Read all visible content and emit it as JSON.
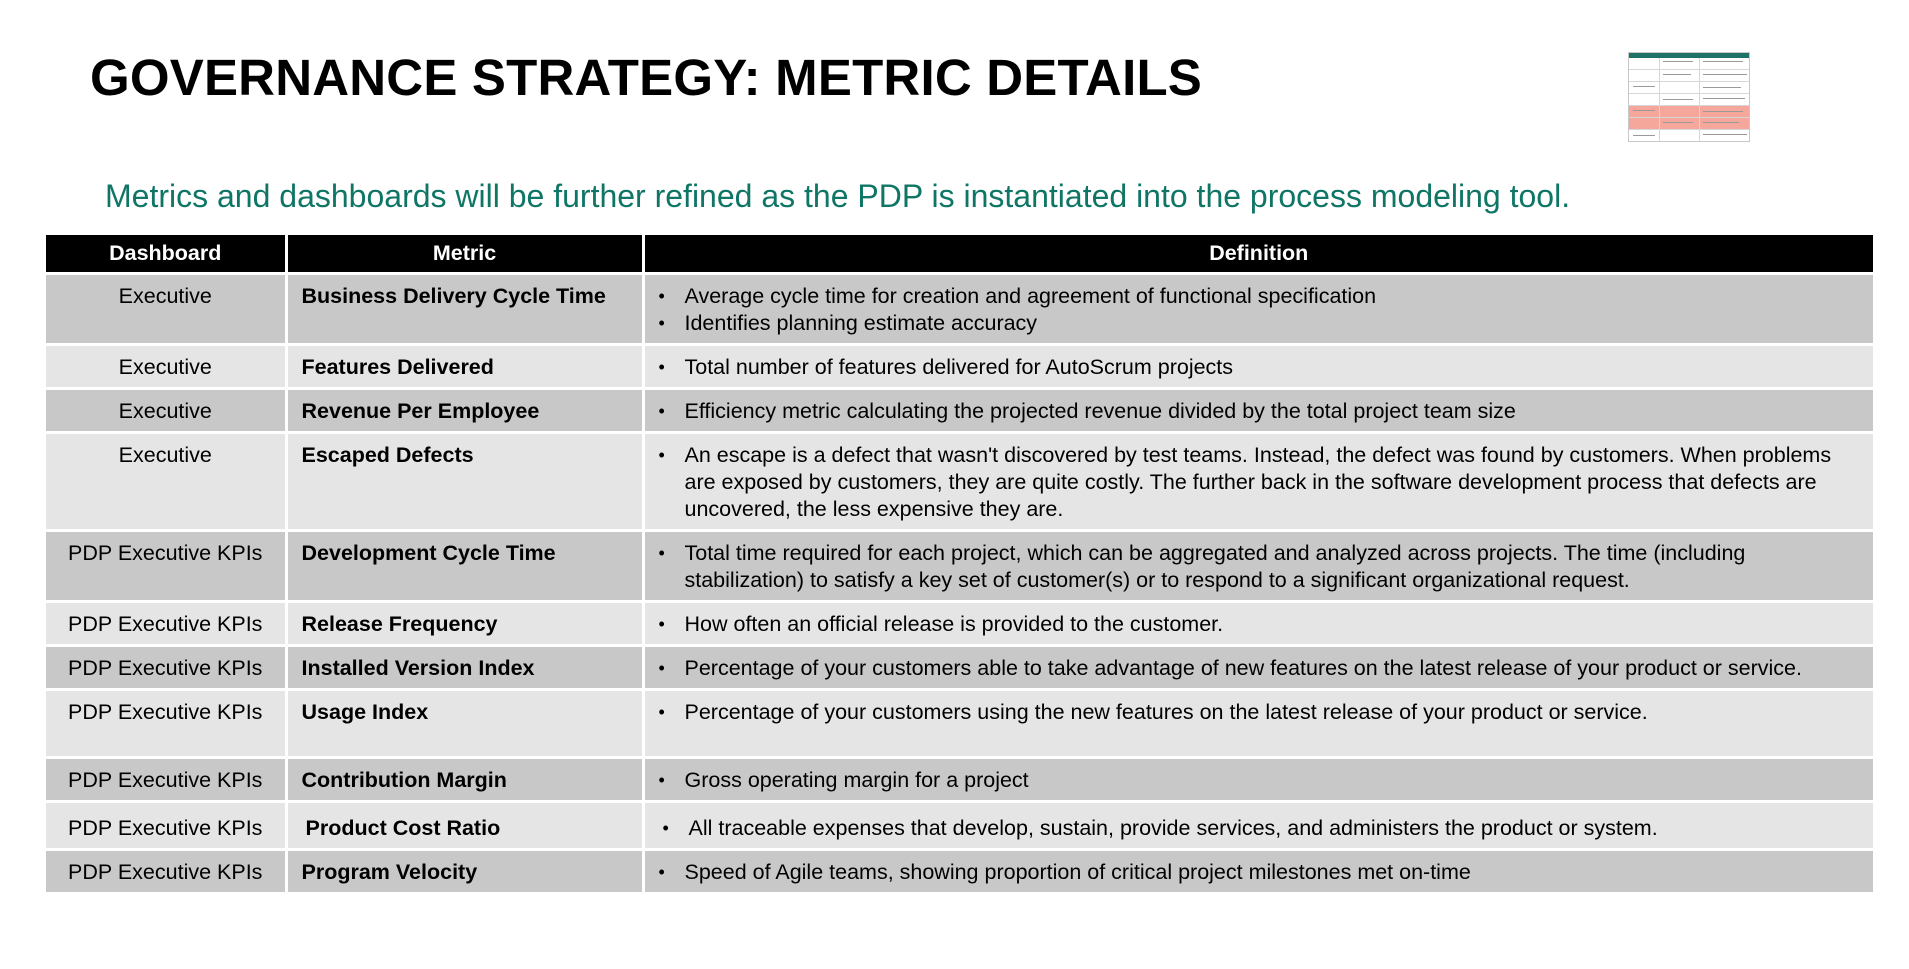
{
  "title": "GOVERNANCE STRATEGY: METRIC DETAILS",
  "subtitle": "Metrics and dashboards will be further refined as the PDP is instantiated into the process modeling tool.",
  "colors": {
    "header_bg": "#000000",
    "row_dark": "#c8c8c8",
    "row_light": "#e5e5e5",
    "subtitle_color": "#0f7666",
    "thumbnail_highlight": "#f4a79a"
  },
  "table": {
    "headers": [
      "Dashboard",
      "Metric",
      "Definition"
    ],
    "rows": [
      {
        "dashboard": "Executive",
        "metric": "Business Delivery Cycle Time",
        "definition": [
          "Average cycle time for creation and agreement of functional specification",
          "Identifies planning estimate accuracy"
        ]
      },
      {
        "dashboard": "Executive",
        "metric": "Features Delivered",
        "definition": [
          "Total number of features delivered for AutoScrum projects"
        ]
      },
      {
        "dashboard": "Executive",
        "metric": "Revenue Per Employee",
        "definition": [
          "Efficiency metric calculating the projected revenue divided by the total project team size"
        ]
      },
      {
        "dashboard": "Executive",
        "metric": "Escaped Defects",
        "definition": [
          "An escape is a defect that wasn't discovered by test teams. Instead, the defect was found by customers. When problems are exposed by customers, they are quite costly. The further back in the software development process that defects are uncovered, the less expensive they are."
        ]
      },
      {
        "dashboard": "PDP Executive KPIs",
        "metric": "Development Cycle Time",
        "definition": [
          "Total time required for each project, which can be aggregated and analyzed across projects. The time (including stabilization) to satisfy a key set of customer(s) or to respond to a significant organizational request."
        ]
      },
      {
        "dashboard": "PDP Executive KPIs",
        "metric": "Release Frequency",
        "definition": [
          "How often an official release is provided to the customer."
        ]
      },
      {
        "dashboard": "PDP Executive KPIs",
        "metric": "Installed Version Index",
        "definition": [
          "Percentage of your customers able to take advantage of new features on the latest release of your product or service."
        ]
      },
      {
        "dashboard": "PDP Executive KPIs",
        "metric": "Usage Index",
        "definition": [
          "Percentage of your customers using the new features on the latest release of your product or service."
        ]
      },
      {
        "dashboard": "PDP Executive KPIs",
        "metric": "Contribution Margin",
        "definition": [
          "Gross operating margin for a project"
        ]
      },
      {
        "dashboard": "PDP Executive KPIs",
        "metric": "Product Cost Ratio",
        "definition": [
          "All traceable expenses that develop, sustain, provide services, and administers the product or system."
        ]
      },
      {
        "dashboard": "PDP Executive KPIs",
        "metric": "Program Velocity",
        "definition": [
          "Speed of Agile teams, showing proportion of critical project milestones met on-time"
        ]
      }
    ]
  }
}
